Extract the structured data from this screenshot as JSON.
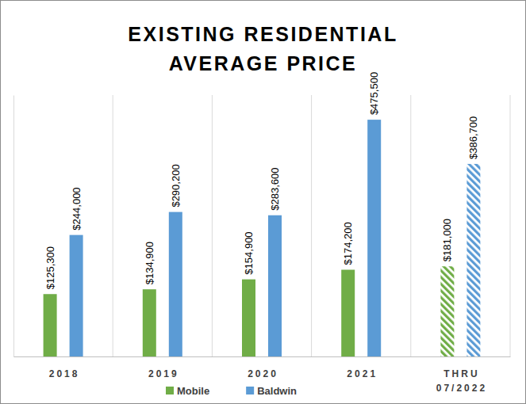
{
  "chart_data": {
    "type": "bar",
    "title": "EXISTING RESIDENTIAL AVERAGE PRICE",
    "categories": [
      "2018",
      "2019",
      "2020",
      "2021",
      "THRU 07/2022"
    ],
    "series": [
      {
        "name": "Mobile",
        "color": "#70ad47",
        "values": [
          125300,
          134900,
          154900,
          174200,
          181000
        ],
        "value_labels": [
          "$125,300",
          "$134,900",
          "$154,900",
          "$174,200",
          "$181,000"
        ]
      },
      {
        "name": "Baldwin",
        "color": "#5b9bd5",
        "values": [
          244000,
          290200,
          283600,
          475500,
          386700
        ],
        "value_labels": [
          "$244,000",
          "$290,200",
          "$283,600",
          "$475,500",
          "$386,700"
        ]
      }
    ],
    "ylim": [
      0,
      525000
    ],
    "tick_labels": "x",
    "data_labels": true,
    "legend": "bottom"
  }
}
